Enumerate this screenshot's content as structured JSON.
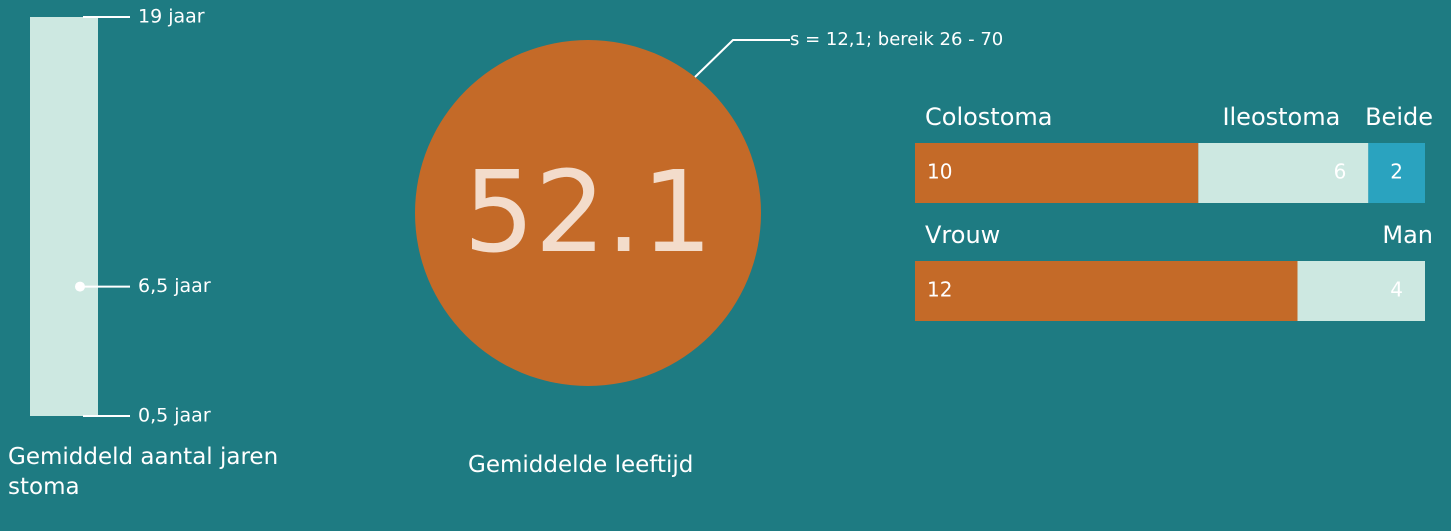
{
  "chart_data": [
    {
      "type": "range",
      "title": "Gemiddeld aantal jaren stoma",
      "values": [
        19,
        6.5,
        0.5
      ],
      "value_labels": [
        "19 jaar",
        "6,5 jaar",
        "0,5 jaar"
      ],
      "ylim": [
        0.5,
        19
      ],
      "color": "#cde8e1"
    },
    {
      "type": "circle",
      "title": "Gemiddelde leeftijd",
      "value": 52.1,
      "annotation": "s = 12,1; bereik 26 - 70",
      "color": "#c46a28"
    },
    {
      "type": "stacked-bar",
      "xlim": [
        0,
        18
      ],
      "series": [
        {
          "name": "Colostoma",
          "color": "#c46a28",
          "values": [
            10
          ]
        },
        {
          "name": "Ileostoma",
          "color": "#cde8e1",
          "values": [
            6
          ]
        },
        {
          "name": "Beide",
          "color": "#2aa3bf",
          "values": [
            2
          ]
        }
      ]
    },
    {
      "type": "stacked-bar",
      "xlim": [
        0,
        16
      ],
      "series": [
        {
          "name": "Vrouw",
          "color": "#c46a28",
          "values": [
            12
          ]
        },
        {
          "name": "Man",
          "color": "#cde8e1",
          "values": [
            4
          ]
        }
      ]
    }
  ]
}
